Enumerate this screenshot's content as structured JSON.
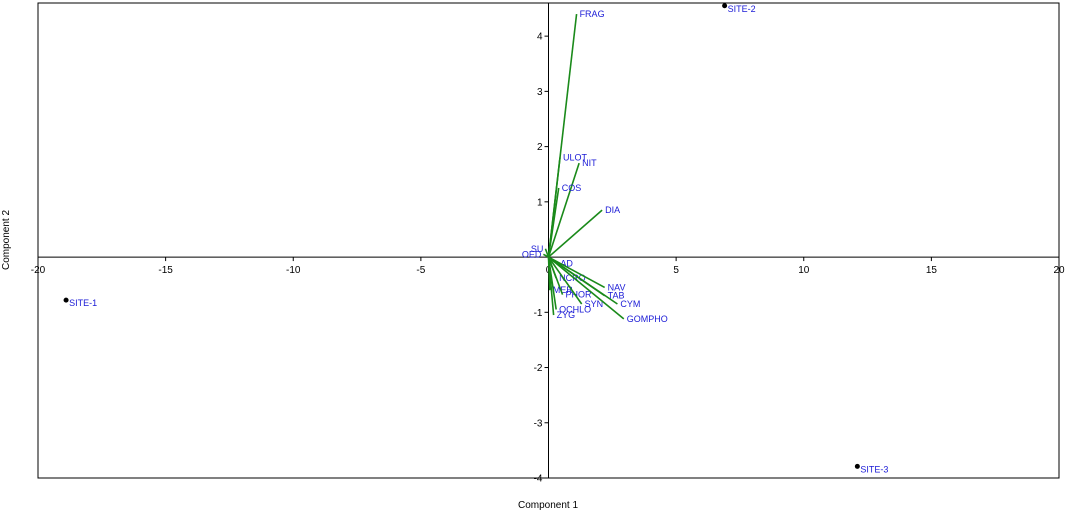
{
  "chart_data": {
    "type": "scatter",
    "subtype": "biplot",
    "title": "",
    "xlabel": "Component 1",
    "ylabel": "Component 2",
    "xlim": [
      -20,
      20
    ],
    "ylim": [
      -4,
      4.6
    ],
    "xticks": [
      -20,
      -15,
      -10,
      -5,
      0,
      5,
      10,
      15,
      20
    ],
    "yticks": [
      -4,
      -3,
      -2,
      -1,
      1,
      2,
      3,
      4
    ],
    "xtick_labels": [
      "-20",
      "-15",
      "-10",
      "-5",
      "0",
      "5",
      "10",
      "15",
      "20"
    ],
    "ytick_labels": [
      "-4",
      "-3",
      "-2",
      "-1",
      "1",
      "2",
      "3",
      "4"
    ],
    "grid": false,
    "colors": {
      "vectors": "#1a8a1a",
      "labels": "#1a1ad6",
      "points": "#000000",
      "axes": "#000000"
    },
    "points": [
      {
        "label": "SITE-1",
        "x": -18.9,
        "y": -0.78
      },
      {
        "label": "SITE-2",
        "x": 6.9,
        "y": 4.55
      },
      {
        "label": "SITE-3",
        "x": 12.1,
        "y": -3.79
      }
    ],
    "vectors": [
      {
        "label": "FRAG",
        "x": 1.1,
        "y": 4.4
      },
      {
        "label": "ULOT",
        "x": 0.45,
        "y": 1.8
      },
      {
        "label": "NIT",
        "x": 1.2,
        "y": 1.7
      },
      {
        "label": "COS",
        "x": 0.4,
        "y": 1.25
      },
      {
        "label": "DIA",
        "x": 2.1,
        "y": 0.85
      },
      {
        "label": "SU",
        "x": -0.12,
        "y": 0.15
      },
      {
        "label": "OED",
        "x": -0.2,
        "y": 0.05
      },
      {
        "label": "AD",
        "x": 0.35,
        "y": -0.12
      },
      {
        "label": "NCRO",
        "x": 0.3,
        "y": -0.38
      },
      {
        "label": "MER",
        "x": 0.05,
        "y": -0.6
      },
      {
        "label": "PHOR",
        "x": 0.55,
        "y": -0.68
      },
      {
        "label": "NAV",
        "x": 2.2,
        "y": -0.55
      },
      {
        "label": "TAB",
        "x": 2.2,
        "y": -0.7
      },
      {
        "label": "SYN",
        "x": 1.3,
        "y": -0.85
      },
      {
        "label": "CYM",
        "x": 2.7,
        "y": -0.85
      },
      {
        "label": "OCHLO",
        "x": 0.3,
        "y": -0.95
      },
      {
        "label": "ZYG",
        "x": 0.2,
        "y": -1.05
      },
      {
        "label": "GOMPHO",
        "x": 2.95,
        "y": -1.12
      }
    ]
  }
}
